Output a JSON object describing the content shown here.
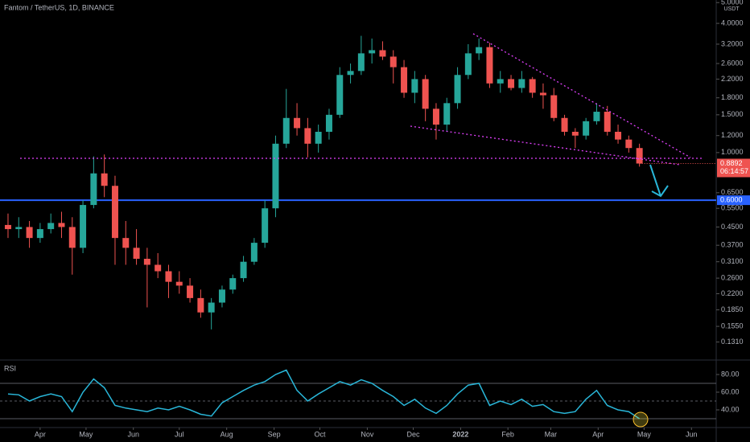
{
  "chart_data": [
    {
      "type": "candlestick",
      "title": "Fantom / TetherUS, 1D, BINANCE",
      "open": [
        0.46,
        0.44,
        0.45,
        0.4,
        0.44,
        0.47,
        0.45,
        0.36,
        0.57,
        0.8,
        0.7,
        0.4,
        0.36,
        0.32,
        0.3,
        0.28,
        0.25,
        0.24,
        0.21,
        0.18,
        0.2,
        0.23,
        0.26,
        0.31,
        0.38,
        0.55,
        1.1,
        1.45,
        1.3,
        1.1,
        1.25,
        1.5,
        2.3,
        2.4,
        2.9,
        3.0,
        2.8,
        2.5,
        1.9,
        2.2,
        1.6,
        1.35,
        1.7,
        2.3,
        2.9,
        3.1,
        2.1,
        2.2,
        2.0,
        2.2,
        1.9,
        1.85,
        1.45,
        1.25,
        1.2,
        1.4,
        1.55,
        1.25,
        1.15,
        1.05
      ],
      "high": [
        0.52,
        0.5,
        0.48,
        0.47,
        0.52,
        0.53,
        0.5,
        0.6,
        0.96,
        0.98,
        0.78,
        0.48,
        0.44,
        0.36,
        0.34,
        0.3,
        0.28,
        0.26,
        0.23,
        0.21,
        0.24,
        0.27,
        0.33,
        0.4,
        0.6,
        1.2,
        1.98,
        1.7,
        1.45,
        1.35,
        1.6,
        2.5,
        2.6,
        3.5,
        3.4,
        3.3,
        3.0,
        2.7,
        2.4,
        2.3,
        1.7,
        1.8,
        2.5,
        3.2,
        3.4,
        3.25,
        2.4,
        2.3,
        2.4,
        2.25,
        2.1,
        2.0,
        1.5,
        1.3,
        1.45,
        1.7,
        1.65,
        1.35,
        1.2,
        1.1
      ],
      "low": [
        0.4,
        0.4,
        0.36,
        0.38,
        0.42,
        0.4,
        0.27,
        0.34,
        0.55,
        0.62,
        0.3,
        0.3,
        0.3,
        0.19,
        0.26,
        0.21,
        0.22,
        0.2,
        0.17,
        0.15,
        0.19,
        0.22,
        0.25,
        0.3,
        0.36,
        0.5,
        1.05,
        1.2,
        0.95,
        1.0,
        1.15,
        1.45,
        2.1,
        2.3,
        2.6,
        2.7,
        2.1,
        1.8,
        1.7,
        1.4,
        1.15,
        1.25,
        1.6,
        2.2,
        2.7,
        2.0,
        1.9,
        1.95,
        1.9,
        1.8,
        1.6,
        1.4,
        1.2,
        1.05,
        1.15,
        1.35,
        1.2,
        1.1,
        1.0,
        0.86
      ],
      "close": [
        0.44,
        0.45,
        0.4,
        0.44,
        0.47,
        0.45,
        0.36,
        0.57,
        0.8,
        0.7,
        0.4,
        0.36,
        0.32,
        0.3,
        0.28,
        0.25,
        0.24,
        0.21,
        0.18,
        0.2,
        0.23,
        0.26,
        0.31,
        0.38,
        0.55,
        1.1,
        1.45,
        1.3,
        1.1,
        1.25,
        1.5,
        2.3,
        2.4,
        2.9,
        3.0,
        2.8,
        2.5,
        1.9,
        2.2,
        1.6,
        1.35,
        1.7,
        2.3,
        2.9,
        3.1,
        2.1,
        2.2,
        2.0,
        2.2,
        1.9,
        1.85,
        1.45,
        1.25,
        1.2,
        1.4,
        1.55,
        1.25,
        1.15,
        1.05,
        0.8892
      ],
      "colors": {
        "up": "#26a69a",
        "down": "#ef5350"
      },
      "log_scale": true,
      "ylim": [
        0.108,
        5.14
      ],
      "xlim": [
        -0.75,
        66.17
      ],
      "yticks": [
        {
          "value": 5,
          "label": "5.0000"
        },
        {
          "value": 4,
          "label": "4.0000"
        },
        {
          "value": 3.2,
          "label": "3.2000"
        },
        {
          "value": 2.6,
          "label": "2.6000"
        },
        {
          "value": 2.2,
          "label": "2.2000"
        },
        {
          "value": 1.8,
          "label": "1.8000"
        },
        {
          "value": 1.5,
          "label": "1.5000"
        },
        {
          "value": 1.2,
          "label": "1.2000"
        },
        {
          "value": 1,
          "label": "1.0000"
        },
        {
          "value": 0.65,
          "label": "0.6500"
        },
        {
          "value": 0.55,
          "label": "0.5500"
        },
        {
          "value": 0.45,
          "label": "0.4500"
        },
        {
          "value": 0.37,
          "label": "0.3700"
        },
        {
          "value": 0.31,
          "label": "0.3100"
        },
        {
          "value": 0.26,
          "label": "0.2600"
        },
        {
          "value": 0.22,
          "label": "0.2200"
        },
        {
          "value": 0.185,
          "label": "0.1850"
        },
        {
          "value": 0.155,
          "label": "0.1550"
        },
        {
          "value": 0.131,
          "label": "0.1310"
        }
      ],
      "axis_unit": "USDT",
      "levels": [
        {
          "value": 0.6,
          "label": "0.6000",
          "color": "#2962ff"
        }
      ],
      "countdown": "06:14:57"
    },
    {
      "type": "line",
      "title": "RSI",
      "color": "#29b6d8",
      "values": [
        58,
        57,
        50,
        55,
        58,
        55,
        38,
        60,
        75,
        65,
        45,
        42,
        40,
        38,
        42,
        40,
        44,
        40,
        35,
        33,
        48,
        55,
        62,
        68,
        72,
        80,
        85,
        62,
        50,
        58,
        65,
        72,
        68,
        74,
        70,
        62,
        55,
        45,
        52,
        42,
        36,
        45,
        58,
        68,
        70,
        45,
        50,
        46,
        52,
        44,
        46,
        38,
        36,
        38,
        52,
        62,
        45,
        40,
        38,
        30
      ],
      "ylim": [
        12.7,
        96.4
      ],
      "xlim": [
        -0.75,
        66.17
      ],
      "yticks": [
        {
          "value": 80,
          "label": "80.00"
        },
        {
          "value": 60,
          "label": "60.00"
        },
        {
          "value": 40,
          "label": "40.00"
        }
      ],
      "bands": [
        30,
        50,
        70
      ],
      "xticks": [
        {
          "value": 3.0,
          "label": "Apr"
        },
        {
          "value": 7.29,
          "label": "May"
        },
        {
          "value": 11.71,
          "label": "Jun"
        },
        {
          "value": 16.0,
          "label": "Jul"
        },
        {
          "value": 20.43,
          "label": "Aug"
        },
        {
          "value": 24.86,
          "label": "Sep"
        },
        {
          "value": 29.14,
          "label": "Oct"
        },
        {
          "value": 33.57,
          "label": "Nov"
        },
        {
          "value": 37.86,
          "label": "Dec"
        },
        {
          "value": 42.29,
          "label": "2022"
        },
        {
          "value": 46.71,
          "label": "Feb"
        },
        {
          "value": 50.71,
          "label": "Mar"
        },
        {
          "value": 55.14,
          "label": "Apr"
        },
        {
          "value": 59.43,
          "label": "May"
        },
        {
          "value": 63.86,
          "label": "Jun"
        }
      ]
    }
  ]
}
